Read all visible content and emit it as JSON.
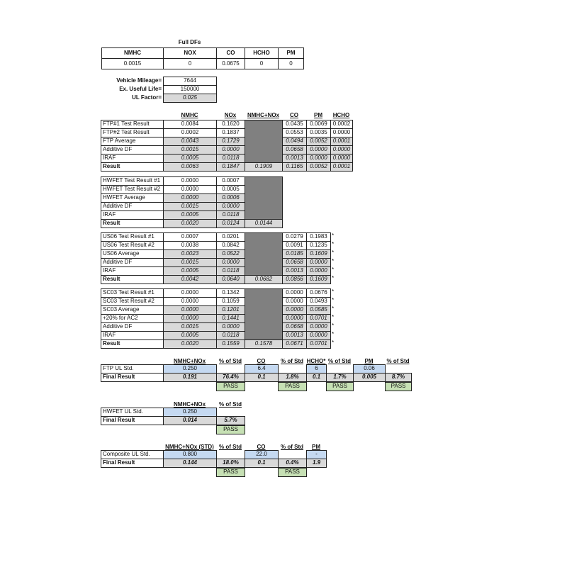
{
  "full_dfs": {
    "title": "Full DFs",
    "headers": [
      "NMHC",
      "NOX",
      "CO",
      "HCHO",
      "PM"
    ],
    "values": [
      "0.0015",
      "0",
      "0.0675",
      "0",
      "0"
    ]
  },
  "mileage": [
    {
      "label": "Vehicle Mileage=",
      "value": "7644"
    },
    {
      "label": "Ex. Useful Life=",
      "value": "150000"
    },
    {
      "label": "UL Factor=",
      "value": "0.025"
    }
  ],
  "test_headers": [
    "NMHC",
    "NOx",
    "NMHC+NOx",
    "CO",
    "PM",
    "HCHO"
  ],
  "test_blocks": [
    {
      "rows": [
        {
          "label": "FTP#1 Test Result",
          "values": [
            "0.0084",
            "0.1620",
            null,
            "0.0435",
            "0.0069",
            "0.0002"
          ]
        },
        {
          "label": "FTP#2 Test Result",
          "values": [
            "0.0002",
            "0.1837",
            null,
            "0.0553",
            "0.0035",
            "0.0000"
          ]
        },
        {
          "label": "FTP Average",
          "values": [
            "0.0043",
            "0.1729",
            null,
            "0.0494",
            "0.0052",
            "0.0001"
          ]
        },
        {
          "label": "Additive DF",
          "values": [
            "0.0015",
            "0.0000",
            null,
            "0.0658",
            "0.0000",
            "0.0000"
          ]
        },
        {
          "label": "IRAF",
          "values": [
            "0.0005",
            "0.0118",
            null,
            "0.0013",
            "0.0000",
            "0.0000"
          ]
        },
        {
          "label": "Result",
          "values": [
            "0.0063",
            "0.1847",
            "0.1909",
            "0.1165",
            "0.0052",
            "0.0001"
          ]
        }
      ]
    },
    {
      "rows": [
        {
          "label": "HWFET Test Result #1",
          "values": [
            "0.0000",
            "0.0007",
            null
          ]
        },
        {
          "label": "HWFET Test Result #2",
          "values": [
            "0.0000",
            "0.0005",
            null
          ]
        },
        {
          "label": "HWFET Average",
          "values": [
            "0.0000",
            "0.0006",
            null
          ]
        },
        {
          "label": "Additive DF",
          "values": [
            "0.0015",
            "0.0000",
            null
          ]
        },
        {
          "label": "IRAF",
          "values": [
            "0.0005",
            "0.0118",
            null
          ]
        },
        {
          "label": "Result",
          "values": [
            "0.0020",
            "0.0124",
            "0.0144"
          ]
        }
      ]
    },
    {
      "note": "*",
      "rows": [
        {
          "label": "US06 Test Result #1",
          "values": [
            "0.0007",
            "0.0201",
            null,
            "0.0279",
            "0.1983"
          ]
        },
        {
          "label": "US06 Test Result #2",
          "values": [
            "0.0038",
            "0.0842",
            null,
            "0.0091",
            "0.1235"
          ]
        },
        {
          "label": "US06 Average",
          "values": [
            "0.0023",
            "0.0522",
            null,
            "0.0185",
            "0.1609"
          ]
        },
        {
          "label": "Additive DF",
          "values": [
            "0.0015",
            "0.0000",
            null,
            "0.0658",
            "0.0000"
          ]
        },
        {
          "label": "IRAF",
          "values": [
            "0.0005",
            "0.0118",
            null,
            "0.0013",
            "0.0000"
          ]
        },
        {
          "label": "Result",
          "values": [
            "0.0042",
            "0.0640",
            "0.0682",
            "0.0856",
            "0.1609"
          ]
        }
      ]
    },
    {
      "note": "*",
      "rows": [
        {
          "label": "SC03 Test Result #1",
          "values": [
            "0.0000",
            "0.1342",
            null,
            "0.0000",
            "0.0676"
          ]
        },
        {
          "label": "SC03 Test Result #2",
          "values": [
            "0.0000",
            "0.1059",
            null,
            "0.0000",
            "0.0493"
          ]
        },
        {
          "label": "SC03 Average",
          "values": [
            "0.0000",
            "0.1201",
            null,
            "0.0000",
            "0.0585"
          ]
        },
        {
          "label": "+20% for AC2",
          "values": [
            "0.0000",
            "0.1441",
            null,
            "0.0000",
            "0.0701"
          ]
        },
        {
          "label": "Additive DF",
          "values": [
            "0.0015",
            "0.0000",
            null,
            "0.0658",
            "0.0000"
          ]
        },
        {
          "label": "IRAF",
          "values": [
            "0.0005",
            "0.0118",
            null,
            "0.0013",
            "0.0000"
          ]
        },
        {
          "label": "Result",
          "values": [
            "0.0020",
            "0.1559",
            "0.1578",
            "0.0671",
            "0.0701"
          ]
        }
      ]
    }
  ],
  "summaries": [
    {
      "headers": [
        "NMHC+NOx",
        "% of Std",
        "CO",
        "% of Std",
        "HCHO*",
        "% of Std",
        "PM",
        "% of Std"
      ],
      "std_label": "FTP UL Std.",
      "std": [
        "0.250",
        "",
        "6.4",
        "",
        "6",
        "",
        "0.06",
        ""
      ],
      "final_label": "Final Result",
      "final": [
        "0.191",
        "76.4%",
        "0.1",
        "1.8%",
        "0.1",
        "1.7%",
        "0.005",
        "8.7%"
      ],
      "pass": [
        "",
        "PASS",
        "",
        "PASS",
        "",
        "PASS",
        "",
        "PASS"
      ]
    },
    {
      "headers": [
        "NMHC+NOx",
        "% of Std"
      ],
      "std_label": "HWFET UL Std.",
      "std": [
        "0.250",
        ""
      ],
      "final_label": "Final Result",
      "final": [
        "0.014",
        "5.7%"
      ],
      "pass": [
        "",
        "PASS"
      ]
    },
    {
      "headers": [
        "NMHC+NOx (STD)",
        "% of Std",
        "CO",
        "% of Std",
        "PM"
      ],
      "std_label": "Composite UL Std.",
      "std": [
        "0.800",
        "",
        "22.0",
        "",
        "-"
      ],
      "final_label": "Final Result",
      "final": [
        "0.144",
        "18.0%",
        "0.1",
        "0.4%",
        "1.9"
      ],
      "pass": [
        "",
        "PASS",
        "",
        "PASS",
        ""
      ]
    }
  ],
  "colors": {
    "computed": "#d9d9d9",
    "blank": "#808080",
    "standard": "#c5d9f1",
    "pass": "#c6e0b4"
  }
}
